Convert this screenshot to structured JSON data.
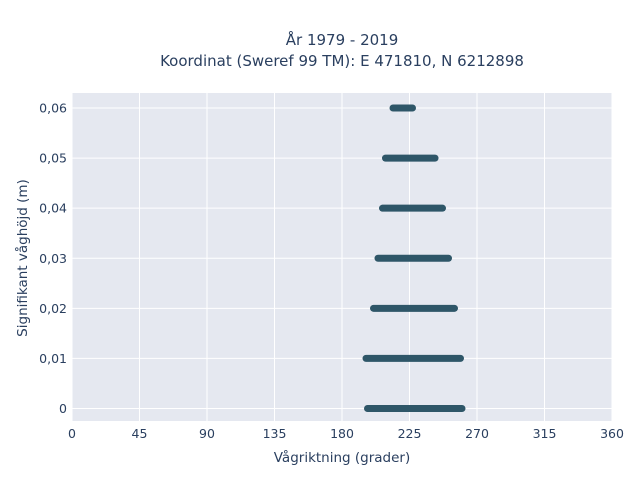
{
  "chart_data": {
    "type": "scatter",
    "title_line1": "År 1979 - 2019",
    "title_line2": "Koordinat (Sweref 99 TM): E 471810, N 6212898",
    "xlabel": "Vågriktning (grader)",
    "ylabel": "Signifikant våghöjd (m)",
    "xlim": [
      0,
      360
    ],
    "ylim": [
      -0.0025,
      0.063
    ],
    "x_ticks": [
      0,
      45,
      90,
      135,
      180,
      225,
      270,
      315,
      360
    ],
    "x_tick_labels": [
      "0",
      "45",
      "90",
      "135",
      "180",
      "225",
      "270",
      "315",
      "360"
    ],
    "y_ticks": [
      0,
      0.01,
      0.02,
      0.03,
      0.04,
      0.05,
      0.06
    ],
    "y_tick_labels": [
      "0",
      "0,01",
      "0,02",
      "0,03",
      "0,04",
      "0,05",
      "0,06"
    ],
    "grid": true,
    "background_color": "#e5e8f0",
    "marker_color": "#2e5668",
    "series": [
      {
        "points_summary": "dense horizontal bands of points; each band spans the direction range [x_min, x_max] at a fixed wave height y",
        "bands": [
          {
            "y": 0.0,
            "x_min": 197,
            "x_max": 260
          },
          {
            "y": 0.01,
            "x_min": 196,
            "x_max": 259
          },
          {
            "y": 0.02,
            "x_min": 201,
            "x_max": 255
          },
          {
            "y": 0.03,
            "x_min": 204,
            "x_max": 251
          },
          {
            "y": 0.04,
            "x_min": 207,
            "x_max": 247
          },
          {
            "y": 0.05,
            "x_min": 209,
            "x_max": 242
          },
          {
            "y": 0.06,
            "x_min": 214,
            "x_max": 227
          }
        ]
      }
    ]
  }
}
